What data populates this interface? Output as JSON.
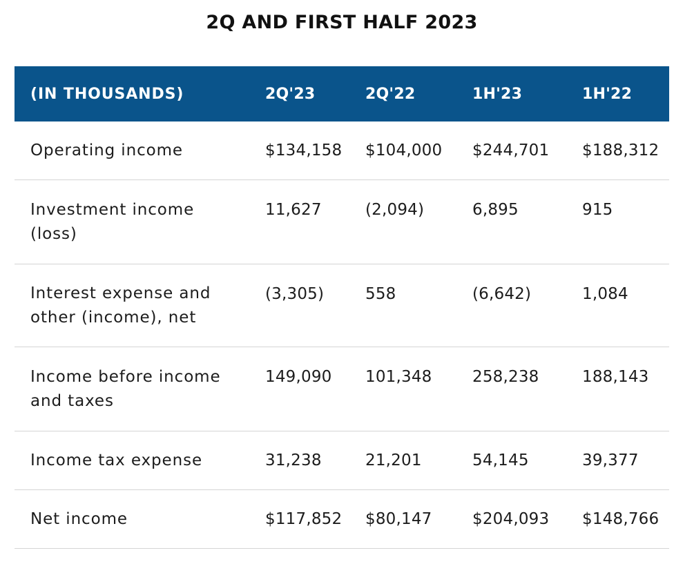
{
  "chart_data": {
    "type": "table",
    "title": "2Q AND FIRST HALF 2023",
    "columns": [
      "(IN THOUSANDS)",
      "2Q'23",
      "2Q'22",
      "1H'23",
      "1H'22"
    ],
    "rows": [
      {
        "label": "Operating income",
        "values": [
          "$134,158",
          "$104,000",
          "$244,701",
          "$188,312"
        ]
      },
      {
        "label": "Investment income\n(loss)",
        "values": [
          "11,627",
          "(2,094)",
          "6,895",
          "915"
        ]
      },
      {
        "label": "Interest expense and\nother (income), net",
        "values": [
          "(3,305)",
          "558",
          "(6,642)",
          "1,084"
        ]
      },
      {
        "label": "Income before income\nand taxes",
        "values": [
          "149,090",
          "101,348",
          "258,238",
          "188,143"
        ]
      },
      {
        "label": "Income tax expense",
        "values": [
          "31,238",
          "21,201",
          "54,145",
          "39,377"
        ]
      },
      {
        "label": "Net income",
        "values": [
          "$117,852",
          "$80,147",
          "$204,093",
          "$148,766"
        ]
      }
    ],
    "colors": {
      "header_background": "#0A548B",
      "header_text": "#FFFFFF",
      "body_text": "#1C1C1C",
      "divider": "#D4D4D4"
    }
  }
}
